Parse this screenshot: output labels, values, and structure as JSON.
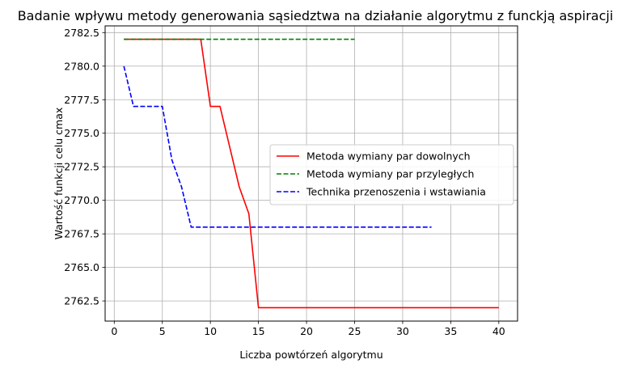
{
  "chart_data": {
    "type": "line",
    "title": "Badanie wpływu metody generowania sąsiedztwa na działanie algorytmu z funckją aspiracji",
    "xlabel": "Liczba powtórzeń algorytmu",
    "ylabel": "Wartość funkcji celu cmax",
    "xlim": [
      -0.95,
      41.95
    ],
    "ylim": [
      2761.0,
      2783.0
    ],
    "xticks": [
      0,
      5,
      10,
      15,
      20,
      25,
      30,
      35,
      40
    ],
    "xtick_labels": [
      "0",
      "5",
      "10",
      "15",
      "20",
      "25",
      "30",
      "35",
      "40"
    ],
    "yticks": [
      2762.5,
      2765.0,
      2767.5,
      2770.0,
      2772.5,
      2775.0,
      2777.5,
      2780.0,
      2782.5
    ],
    "ytick_labels": [
      "2762.5",
      "2765.0",
      "2767.5",
      "2770.0",
      "2772.5",
      "2775.0",
      "2777.5",
      "2780.0",
      "2782.5"
    ],
    "grid": true,
    "legend_position": "center-right",
    "series": [
      {
        "name": "Metoda wymiany par dowolnych",
        "color": "#ff0000",
        "style": "solid",
        "x": [
          1,
          2,
          3,
          4,
          5,
          6,
          7,
          8,
          9,
          10,
          11,
          12,
          13,
          14,
          15,
          16,
          17,
          18,
          19,
          20,
          21,
          22,
          23,
          24,
          25,
          26,
          27,
          28,
          29,
          30,
          31,
          32,
          33,
          34,
          35,
          36,
          37,
          38,
          39,
          40
        ],
        "y": [
          2782,
          2782,
          2782,
          2782,
          2782,
          2782,
          2782,
          2782,
          2782,
          2777,
          2777,
          2774,
          2771,
          2769,
          2762,
          2762,
          2762,
          2762,
          2762,
          2762,
          2762,
          2762,
          2762,
          2762,
          2762,
          2762,
          2762,
          2762,
          2762,
          2762,
          2762,
          2762,
          2762,
          2762,
          2762,
          2762,
          2762,
          2762,
          2762,
          2762
        ]
      },
      {
        "name": "Metoda wymiany par przyległych",
        "color": "#008000",
        "style": "dashed",
        "x": [
          1,
          2,
          3,
          4,
          5,
          6,
          7,
          8,
          9,
          10,
          11,
          12,
          13,
          14,
          15,
          16,
          17,
          18,
          19,
          20,
          21,
          22,
          23,
          24,
          25
        ],
        "y": [
          2782,
          2782,
          2782,
          2782,
          2782,
          2782,
          2782,
          2782,
          2782,
          2782,
          2782,
          2782,
          2782,
          2782,
          2782,
          2782,
          2782,
          2782,
          2782,
          2782,
          2782,
          2782,
          2782,
          2782,
          2782
        ]
      },
      {
        "name": "Technika przenoszenia i wstawiania",
        "color": "#0000ff",
        "style": "dashed",
        "x": [
          1,
          2,
          3,
          4,
          5,
          6,
          7,
          8,
          9,
          10,
          11,
          12,
          13,
          14,
          15,
          16,
          17,
          18,
          19,
          20,
          21,
          22,
          23,
          24,
          25,
          26,
          27,
          28,
          29,
          30,
          31,
          32,
          33
        ],
        "y": [
          2780,
          2777,
          2777,
          2777,
          2777,
          2773,
          2771,
          2768,
          2768,
          2768,
          2768,
          2768,
          2768,
          2768,
          2768,
          2768,
          2768,
          2768,
          2768,
          2768,
          2768,
          2768,
          2768,
          2768,
          2768,
          2768,
          2768,
          2768,
          2768,
          2768,
          2768,
          2768,
          2768
        ]
      }
    ]
  }
}
